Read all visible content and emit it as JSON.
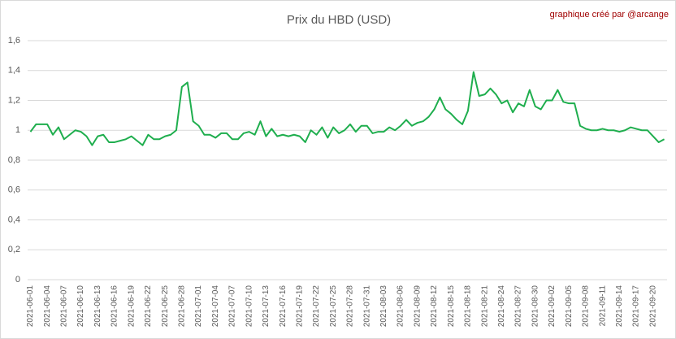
{
  "chart_data": {
    "type": "line",
    "title": "Prix du HBD (USD)",
    "annotation": "graphique créé par @arcange",
    "categories": [
      "2021-06-01",
      null,
      null,
      "2021-06-04",
      null,
      null,
      "2021-06-07",
      null,
      null,
      "2021-06-10",
      null,
      null,
      "2021-06-13",
      null,
      null,
      "2021-06-16",
      null,
      null,
      "2021-06-19",
      null,
      null,
      "2021-06-22",
      null,
      null,
      "2021-06-25",
      null,
      null,
      "2021-06-28",
      null,
      null,
      "2021-07-01",
      null,
      null,
      "2021-07-04",
      null,
      null,
      "2021-07-07",
      null,
      null,
      "2021-07-10",
      null,
      null,
      "2021-07-13",
      null,
      null,
      "2021-07-16",
      null,
      null,
      "2021-07-19",
      null,
      null,
      "2021-07-22",
      null,
      null,
      "2021-07-25",
      null,
      null,
      "2021-07-28",
      null,
      null,
      "2021-07-31",
      null,
      null,
      "2021-08-03",
      null,
      null,
      "2021-08-06",
      null,
      null,
      "2021-08-09",
      null,
      null,
      "2021-08-12",
      null,
      null,
      "2021-08-15",
      null,
      null,
      "2021-08-18",
      null,
      null,
      "2021-08-21",
      null,
      null,
      "2021-08-24",
      null,
      null,
      "2021-08-27",
      null,
      null,
      "2021-08-30",
      null,
      null,
      "2021-09-02",
      null,
      null,
      "2021-09-05",
      null,
      null,
      "2021-09-08",
      null,
      null,
      "2021-09-11",
      null,
      null,
      "2021-09-14",
      null,
      null,
      "2021-09-17",
      null,
      null,
      "2021-09-20",
      null,
      null
    ],
    "series": [
      {
        "name": "HBD",
        "color": "#1fae4e",
        "values": [
          0.99,
          1.04,
          1.04,
          1.04,
          0.97,
          1.02,
          0.94,
          0.97,
          1.0,
          0.99,
          0.96,
          0.9,
          0.96,
          0.97,
          0.92,
          0.92,
          0.93,
          0.94,
          0.96,
          0.93,
          0.9,
          0.97,
          0.94,
          0.94,
          0.96,
          0.97,
          1.0,
          1.29,
          1.32,
          1.06,
          1.03,
          0.97,
          0.97,
          0.95,
          0.98,
          0.98,
          0.94,
          0.94,
          0.98,
          0.99,
          0.97,
          1.06,
          0.96,
          1.01,
          0.96,
          0.97,
          0.96,
          0.97,
          0.96,
          0.92,
          1.0,
          0.97,
          1.02,
          0.95,
          1.02,
          0.98,
          1.0,
          1.04,
          0.99,
          1.03,
          1.03,
          0.98,
          0.99,
          0.99,
          1.02,
          1.0,
          1.03,
          1.07,
          1.03,
          1.05,
          1.06,
          1.09,
          1.14,
          1.22,
          1.14,
          1.11,
          1.07,
          1.04,
          1.13,
          1.39,
          1.23,
          1.24,
          1.28,
          1.24,
          1.18,
          1.2,
          1.12,
          1.18,
          1.16,
          1.27,
          1.16,
          1.14,
          1.2,
          1.2,
          1.27,
          1.19,
          1.18,
          1.18,
          1.03,
          1.01,
          1.0,
          1.0,
          1.01,
          1.0,
          1.0,
          0.99,
          1.0,
          1.02,
          1.01,
          1.0,
          1.0,
          0.96,
          0.92,
          0.94
        ]
      }
    ],
    "ylim": [
      0,
      1.6
    ],
    "yticks": [
      0,
      {
        "value": 0.2,
        "label": "0,2"
      },
      {
        "value": 0.4,
        "label": "0,4"
      },
      {
        "value": 0.6,
        "label": "0,6"
      },
      {
        "value": 0.8,
        "label": "0,8"
      },
      1,
      {
        "value": 1.2,
        "label": "1,2"
      },
      {
        "value": 1.4,
        "label": "1,4"
      },
      {
        "value": 1.6,
        "label": "1,6"
      }
    ],
    "grid": true
  }
}
